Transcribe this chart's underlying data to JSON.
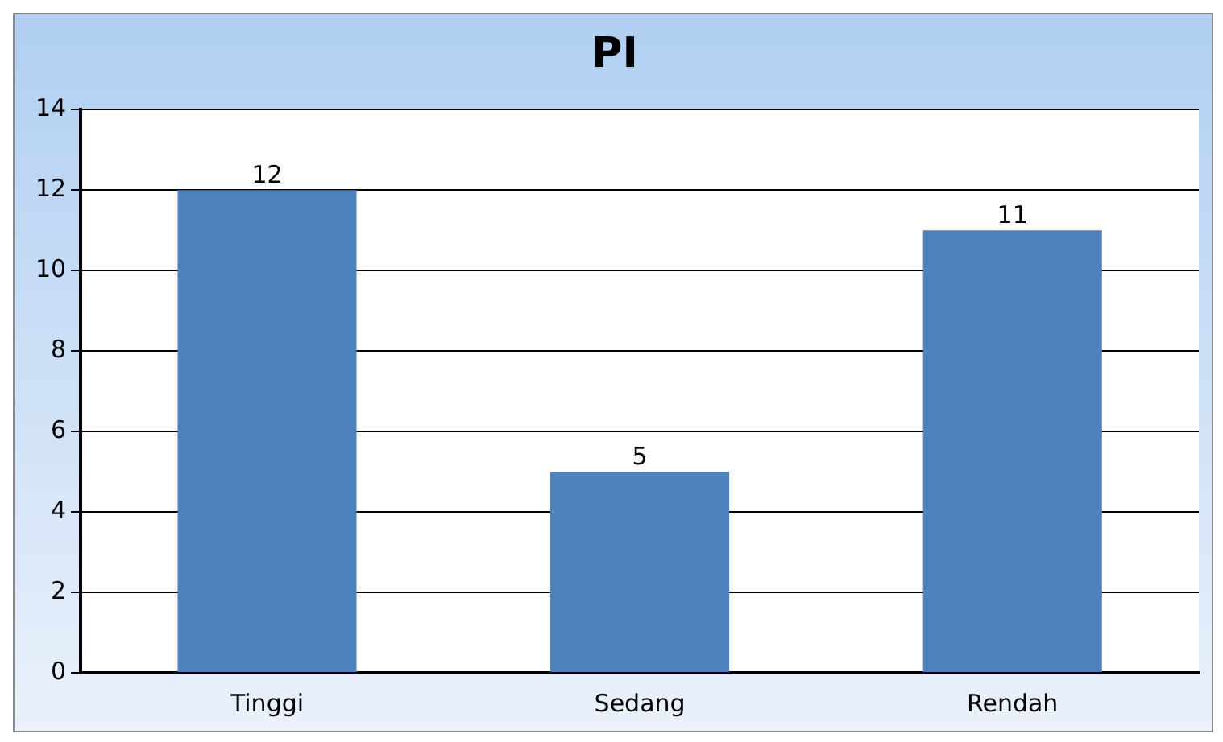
{
  "chart_data": {
    "type": "bar",
    "title": "PI",
    "categories": [
      "Tinggi",
      "Sedang",
      "Rendah"
    ],
    "values": [
      12,
      5,
      11
    ],
    "color": "#4f81bd",
    "ylim": [
      0,
      14
    ],
    "yticks": [
      0,
      2,
      4,
      6,
      8,
      10,
      12,
      14
    ],
    "grid": "y",
    "data_labels": true
  }
}
